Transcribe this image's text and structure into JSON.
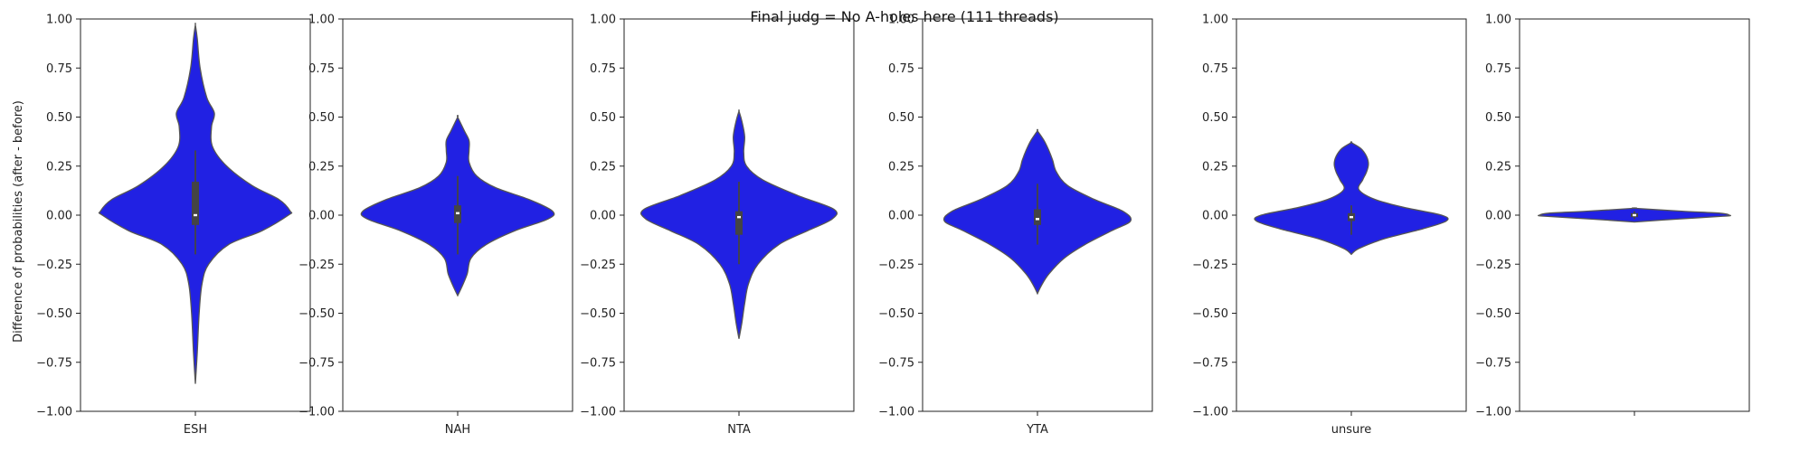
{
  "figure": {
    "title": "Final judg = No A-holes here (111 threads)"
  },
  "chart_data": {
    "type": "violin",
    "title": "Final judg = No A-holes here (111 threads)",
    "ylabel": "Difference of probabilities (after - before)",
    "ylim": [
      -1.0,
      1.0
    ],
    "yticks": [
      -1.0,
      -0.75,
      -0.5,
      -0.25,
      0.0,
      0.25,
      0.5,
      0.75,
      1.0
    ],
    "ytick_labels": [
      "−1.00",
      "−0.75",
      "−0.50",
      "−0.25",
      "0.00",
      "0.25",
      "0.50",
      "0.75",
      "1.00"
    ],
    "fill_color": "#2121e3",
    "edge_color": "#555555",
    "box_color": "#444444",
    "median_color": "#ffffff",
    "panels": [
      {
        "category": "ESH",
        "violin": {
          "y": [
            -0.86,
            -0.7,
            -0.5,
            -0.35,
            -0.25,
            -0.15,
            -0.08,
            0.0,
            0.02,
            0.08,
            0.15,
            0.25,
            0.35,
            0.45,
            0.52,
            0.6,
            0.75,
            0.9,
            0.97
          ],
          "w": [
            0.0,
            0.02,
            0.04,
            0.07,
            0.14,
            0.35,
            0.7,
            0.98,
            1.0,
            0.88,
            0.6,
            0.33,
            0.18,
            0.17,
            0.2,
            0.12,
            0.05,
            0.02,
            0.0
          ]
        },
        "box": {
          "q1": -0.05,
          "q3": 0.17,
          "median": 0.0,
          "whisker_low": -0.2,
          "whisker_high": 0.33
        }
      },
      {
        "category": "NAH",
        "violin": {
          "y": [
            -0.41,
            -0.37,
            -0.3,
            -0.22,
            -0.15,
            -0.08,
            -0.02,
            0.02,
            0.08,
            0.14,
            0.2,
            0.27,
            0.33,
            0.38,
            0.43,
            0.5
          ],
          "w": [
            0.0,
            0.04,
            0.1,
            0.14,
            0.3,
            0.6,
            0.95,
            1.0,
            0.75,
            0.4,
            0.2,
            0.12,
            0.12,
            0.12,
            0.07,
            0.0
          ]
        },
        "box": {
          "q1": -0.04,
          "q3": 0.05,
          "median": 0.01,
          "whisker_low": -0.2,
          "whisker_high": 0.2
        }
      },
      {
        "category": "NTA",
        "violin": {
          "y": [
            -0.63,
            -0.55,
            -0.45,
            -0.35,
            -0.25,
            -0.15,
            -0.08,
            -0.02,
            0.03,
            0.1,
            0.18,
            0.25,
            0.32,
            0.4,
            0.48,
            0.53
          ],
          "w": [
            0.0,
            0.03,
            0.06,
            0.1,
            0.2,
            0.42,
            0.72,
            0.98,
            1.0,
            0.62,
            0.25,
            0.08,
            0.05,
            0.06,
            0.03,
            0.0
          ]
        },
        "box": {
          "q1": -0.1,
          "q3": 0.02,
          "median": -0.01,
          "whisker_low": -0.25,
          "whisker_high": 0.17
        }
      },
      {
        "category": "YTA",
        "violin": {
          "y": [
            -0.4,
            -0.36,
            -0.3,
            -0.22,
            -0.15,
            -0.08,
            -0.03,
            0.02,
            0.08,
            0.15,
            0.22,
            0.28,
            0.33,
            0.38,
            0.43
          ],
          "w": [
            0.0,
            0.04,
            0.12,
            0.28,
            0.5,
            0.78,
            0.98,
            0.9,
            0.6,
            0.32,
            0.2,
            0.16,
            0.12,
            0.07,
            0.0
          ]
        },
        "box": {
          "q1": -0.05,
          "q3": 0.03,
          "median": -0.02,
          "whisker_low": -0.15,
          "whisker_high": 0.16
        }
      },
      {
        "category": "unsure",
        "violin": {
          "y": [
            -0.2,
            -0.17,
            -0.12,
            -0.07,
            -0.03,
            0.0,
            0.04,
            0.08,
            0.13,
            0.18,
            0.22,
            0.26,
            0.3,
            0.34,
            0.37
          ],
          "w": [
            0.0,
            0.08,
            0.35,
            0.75,
            1.0,
            0.95,
            0.55,
            0.25,
            0.08,
            0.12,
            0.16,
            0.18,
            0.16,
            0.1,
            0.0
          ]
        },
        "box": {
          "q1": -0.03,
          "q3": 0.01,
          "median": -0.01,
          "whisker_low": -0.1,
          "whisker_high": 0.05
        }
      },
      {
        "category": "",
        "violin": {
          "y": [
            -0.035,
            -0.02,
            -0.005,
            0.0,
            0.01,
            0.02,
            0.035
          ],
          "w": [
            0.0,
            0.45,
            0.95,
            1.0,
            0.9,
            0.5,
            0.0
          ]
        },
        "box": {
          "q1": -0.01,
          "q3": 0.01,
          "median": 0.0,
          "whisker_low": -0.02,
          "whisker_high": 0.02
        }
      }
    ]
  }
}
